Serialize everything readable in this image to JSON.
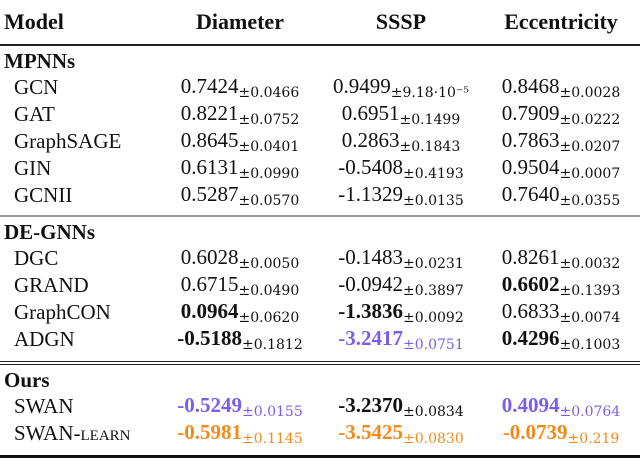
{
  "colors": {
    "best": "#7b5cf0",
    "ours_learn": "#f28a1a",
    "default": "#111111"
  },
  "header": {
    "model": "Model",
    "columns": [
      "Diameter",
      "SSSP",
      "Eccentricity"
    ]
  },
  "groups": [
    {
      "title": "MPNNs",
      "rows": [
        {
          "model": "GCN",
          "cells": [
            {
              "mean": "0.7424",
              "std": "±0.0466"
            },
            {
              "mean": "0.9499",
              "std": "±9.18·10⁻⁵"
            },
            {
              "mean": "0.8468",
              "std": "±0.0028"
            }
          ]
        },
        {
          "model": "GAT",
          "cells": [
            {
              "mean": "0.8221",
              "std": "±0.0752"
            },
            {
              "mean": "0.6951",
              "std": "±0.1499"
            },
            {
              "mean": "0.7909",
              "std": "±0.0222"
            }
          ]
        },
        {
          "model": "GraphSAGE",
          "cells": [
            {
              "mean": "0.8645",
              "std": "±0.0401"
            },
            {
              "mean": "0.2863",
              "std": "±0.1843"
            },
            {
              "mean": "0.7863",
              "std": "±0.0207"
            }
          ]
        },
        {
          "model": "GIN",
          "cells": [
            {
              "mean": "0.6131",
              "std": "±0.0990"
            },
            {
              "mean": "-0.5408",
              "std": "±0.4193"
            },
            {
              "mean": "0.9504",
              "std": "±0.0007"
            }
          ]
        },
        {
          "model": "GCNII",
          "cells": [
            {
              "mean": "0.5287",
              "std": "±0.0570"
            },
            {
              "mean": "-1.1329",
              "std": "±0.0135"
            },
            {
              "mean": "0.7640",
              "std": "±0.0355"
            }
          ]
        }
      ]
    },
    {
      "title": "DE-GNNs",
      "rows": [
        {
          "model": "DGC",
          "cells": [
            {
              "mean": "0.6028",
              "std": "±0.0050"
            },
            {
              "mean": "-0.1483",
              "std": "±0.0231"
            },
            {
              "mean": "0.8261",
              "std": "±0.0032"
            }
          ]
        },
        {
          "model": "GRAND",
          "cells": [
            {
              "mean": "0.6715",
              "std": "±0.0490"
            },
            {
              "mean": "-0.0942",
              "std": "±0.3897"
            },
            {
              "mean": "0.6602",
              "std": "±0.1393",
              "bold": true
            }
          ]
        },
        {
          "model": "GraphCON",
          "cells": [
            {
              "mean": "0.0964",
              "std": "±0.0620",
              "bold": true
            },
            {
              "mean": "-1.3836",
              "std": "±0.0092",
              "bold": true
            },
            {
              "mean": "0.6833",
              "std": "±0.0074"
            }
          ]
        },
        {
          "model": "ADGN",
          "cells": [
            {
              "mean": "-0.5188",
              "std": "±0.1812",
              "bold": true
            },
            {
              "mean": "-3.2417",
              "std": "±0.0751",
              "bold": true,
              "color": "best"
            },
            {
              "mean": "0.4296",
              "std": "±0.1003",
              "bold": true
            }
          ]
        }
      ]
    },
    {
      "title": "Ours",
      "rows": [
        {
          "model": "SWAN",
          "cells": [
            {
              "mean": "-0.5249",
              "std": "±0.0155",
              "bold": true,
              "color": "best"
            },
            {
              "mean": "-3.2370",
              "std": "±0.0834",
              "bold": true
            },
            {
              "mean": "0.4094",
              "std": "±0.0764",
              "bold": true,
              "color": "best"
            }
          ]
        },
        {
          "model": "SWAN-",
          "model_sc": "learn",
          "cells": [
            {
              "mean": "-0.5981",
              "std": "±0.1145",
              "bold": true,
              "color": "ours_learn"
            },
            {
              "mean": "-3.5425",
              "std": "±0.0830",
              "bold": true,
              "color": "ours_learn"
            },
            {
              "mean": "-0.0739",
              "std": "±0.219",
              "bold": true,
              "color": "ours_learn"
            }
          ]
        }
      ]
    }
  ]
}
